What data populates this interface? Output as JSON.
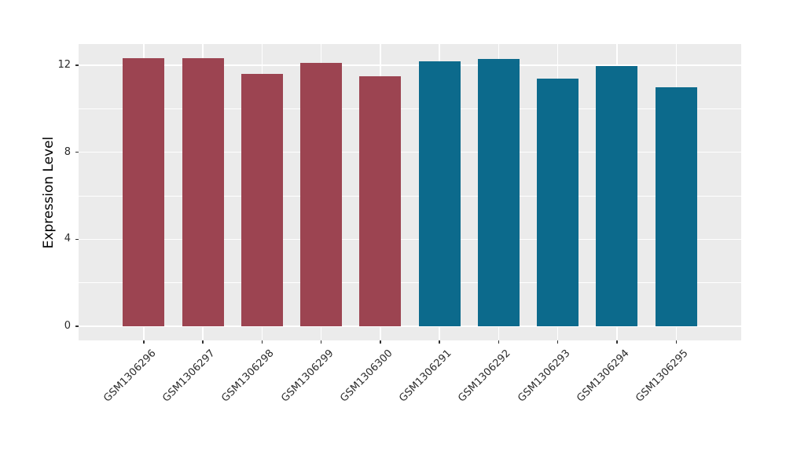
{
  "chart_data": {
    "type": "bar",
    "title": "",
    "xlabel": "",
    "ylabel": "Expression Level",
    "categories": [
      "GSM1306296",
      "GSM1306297",
      "GSM1306298",
      "GSM1306299",
      "GSM1306300",
      "GSM1306291",
      "GSM1306292",
      "GSM1306293",
      "GSM1306294",
      "GSM1306295"
    ],
    "values": [
      12.32,
      12.31,
      11.62,
      12.11,
      11.51,
      12.18,
      12.29,
      11.38,
      11.98,
      10.99
    ],
    "bar_colors": [
      "#9C4451",
      "#9C4451",
      "#9C4451",
      "#9C4451",
      "#9C4451",
      "#0C6A8C",
      "#0C6A8C",
      "#0C6A8C",
      "#0C6A8C",
      "#0C6A8C"
    ],
    "group_colors": {
      "left-group": "#9C4451",
      "right-group": "#0C6A8C"
    },
    "ylim": [
      0,
      13
    ],
    "yticks": [
      0,
      4,
      8,
      12
    ],
    "yticks_minor": [
      2,
      6,
      10
    ],
    "grid": "on",
    "legend": "none",
    "panel_background": "#EBEBEB",
    "grid_color": "#FFFFFF"
  }
}
